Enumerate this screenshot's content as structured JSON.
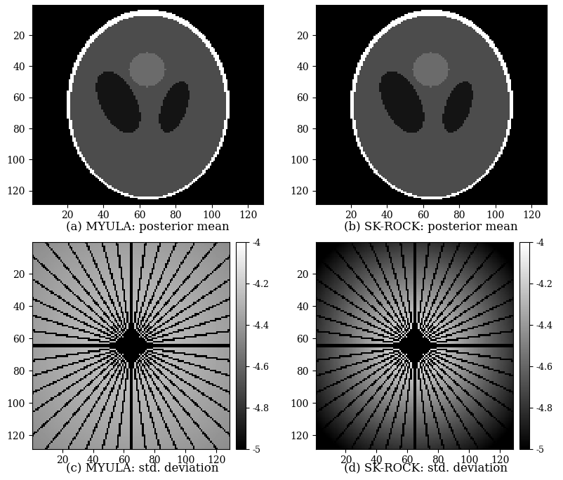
{
  "chart_data": [
    {
      "type": "image",
      "caption": "(a) MYULA: posterior mean",
      "xlim": [
        0.5,
        128.5
      ],
      "ylim": [
        128.5,
        0.5
      ],
      "xticks": [
        20,
        40,
        60,
        80,
        100,
        120
      ],
      "yticks": [
        20,
        40,
        60,
        80,
        100,
        120
      ],
      "image": {
        "size": 128,
        "range": [
          0,
          1
        ],
        "ellipses": [
          {
            "cx": 64.5,
            "cy": 64.5,
            "a": 45,
            "b": 61,
            "angle": 0,
            "value": 1.0
          },
          {
            "cx": 64.5,
            "cy": 65.5,
            "a": 43,
            "b": 58.5,
            "angle": 0,
            "value": 0.3
          },
          {
            "cx": 48,
            "cy": 63,
            "a": 10,
            "b": 21,
            "angle": -22,
            "value": 0.08
          },
          {
            "cx": 79,
            "cy": 66,
            "a": 7,
            "b": 17,
            "angle": 16,
            "value": 0.08
          },
          {
            "cx": 64,
            "cy": 42,
            "a": 10,
            "b": 11,
            "angle": 0,
            "value": 0.42
          }
        ]
      }
    },
    {
      "type": "image",
      "caption": "(b) SK-ROCK: posterior mean",
      "xlim": [
        0.5,
        128.5
      ],
      "ylim": [
        128.5,
        0.5
      ],
      "xticks": [
        20,
        40,
        60,
        80,
        100,
        120
      ],
      "yticks": [
        20,
        40,
        60,
        80,
        100,
        120
      ],
      "image": {
        "size": 128,
        "range": [
          0,
          1
        ],
        "ellipses": [
          {
            "cx": 64.5,
            "cy": 64.5,
            "a": 45,
            "b": 61,
            "angle": 0,
            "value": 1.0
          },
          {
            "cx": 64.5,
            "cy": 65.5,
            "a": 43,
            "b": 58.5,
            "angle": 0,
            "value": 0.3
          },
          {
            "cx": 48,
            "cy": 63,
            "a": 10,
            "b": 21,
            "angle": -22,
            "value": 0.08
          },
          {
            "cx": 79,
            "cy": 66,
            "a": 7,
            "b": 17,
            "angle": 16,
            "value": 0.08
          },
          {
            "cx": 64,
            "cy": 42,
            "a": 10,
            "b": 11,
            "angle": 0,
            "value": 0.42
          }
        ]
      }
    },
    {
      "type": "heatmap",
      "caption": "(c) MYULA: std. deviation",
      "xlim": [
        0.5,
        128.5
      ],
      "ylim": [
        128.5,
        0.5
      ],
      "xticks": [
        20,
        40,
        60,
        80,
        100,
        120
      ],
      "yticks": [
        20,
        40,
        60,
        80,
        100,
        120
      ],
      "image": {
        "size": 128,
        "lines": 22,
        "line_value": -5,
        "center_radius": 9,
        "background": [
          -4.2,
          -4.45
        ],
        "fade_radius": 90
      },
      "colorbar": {
        "range": [
          -5,
          -4
        ],
        "ticks": [
          -4,
          -4.2,
          -4.4,
          -4.6,
          -4.8,
          -5
        ]
      }
    },
    {
      "type": "heatmap",
      "caption": "(d) SK-ROCK: std. deviation",
      "xlim": [
        0.5,
        128.5
      ],
      "ylim": [
        128.5,
        0.5
      ],
      "xticks": [
        20,
        40,
        60,
        80,
        100,
        120
      ],
      "yticks": [
        20,
        40,
        60,
        80,
        100,
        120
      ],
      "image": {
        "size": 128,
        "lines": 22,
        "line_value": -5,
        "center_radius": 9,
        "background": [
          -4.0,
          -5.0
        ],
        "fade_radius": 80
      },
      "colorbar": {
        "range": [
          -5,
          -4
        ],
        "ticks": [
          -4,
          -4.2,
          -4.4,
          -4.6,
          -4.8,
          -5
        ]
      }
    }
  ]
}
